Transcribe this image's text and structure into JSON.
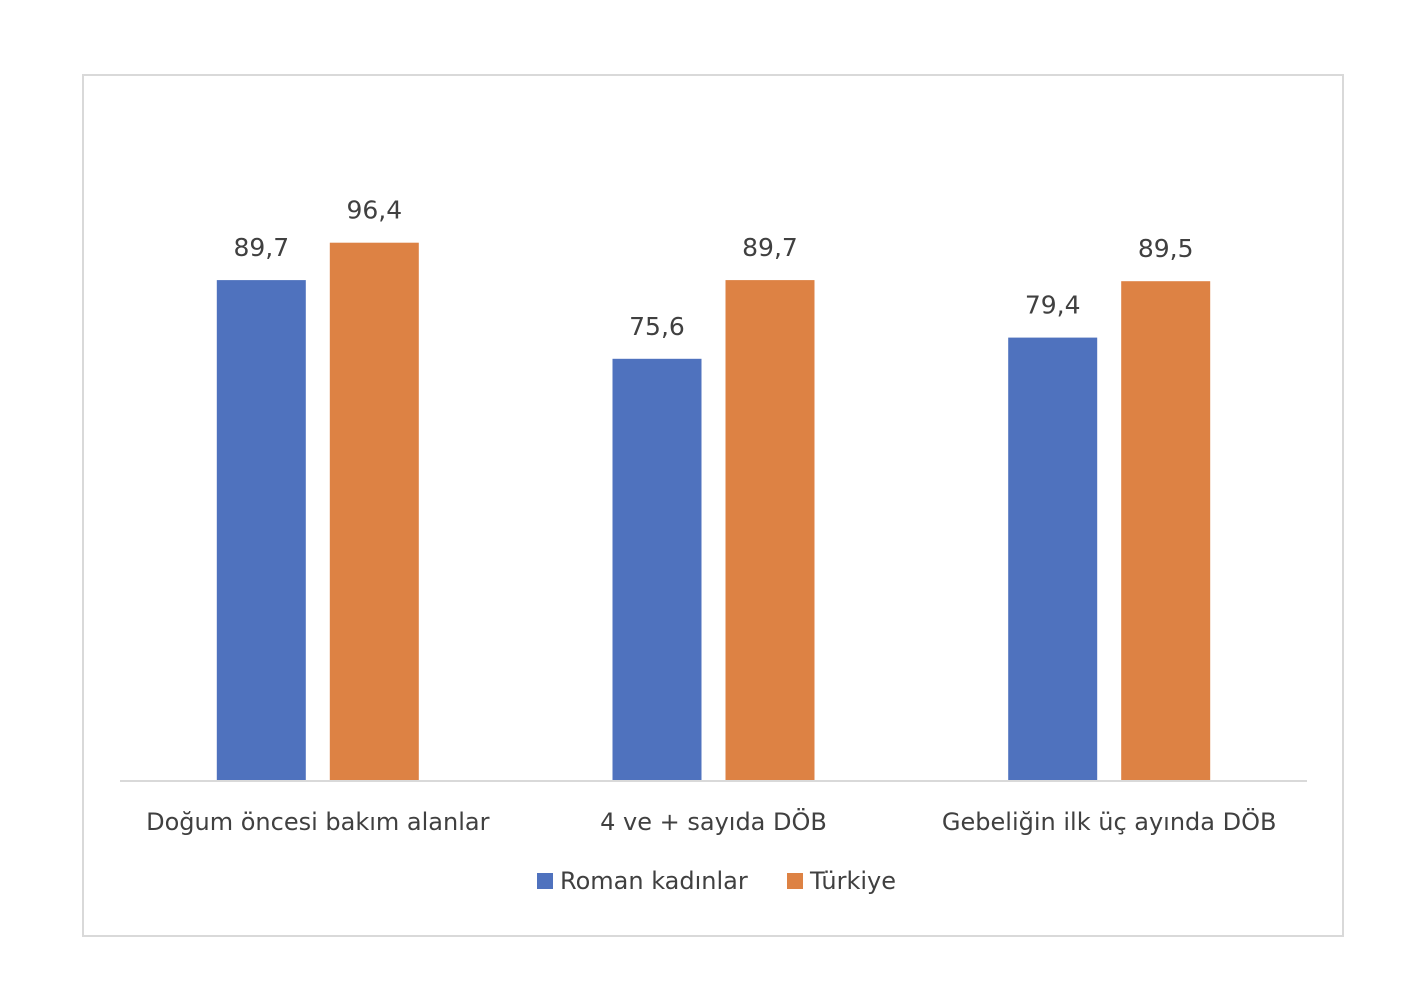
{
  "chart_data": {
    "type": "bar",
    "title": "",
    "xlabel": "",
    "ylabel": "",
    "ylim": [
      0,
      100
    ],
    "grid": false,
    "legend_position": "bottom",
    "categories": [
      "Doğum öncesi bakım alanlar",
      "4 ve + sayıda DÖB",
      "Gebeliğin ilk üç ayında DÖB"
    ],
    "series": [
      {
        "name": "Roman kadınlar",
        "color": "#4f72be",
        "values": [
          89.7,
          75.6,
          79.4
        ],
        "labels": [
          "89,7",
          "75,6",
          "79,4"
        ]
      },
      {
        "name": "Türkiye",
        "color": "#dd8244",
        "values": [
          96.4,
          89.7,
          89.5
        ],
        "labels": [
          "96,4",
          "89,7",
          "89,5"
        ]
      }
    ]
  }
}
